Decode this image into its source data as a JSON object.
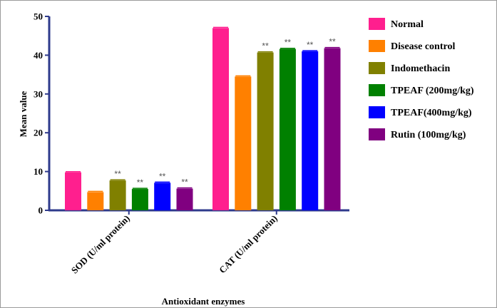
{
  "chart_data": {
    "type": "bar",
    "title": "",
    "xlabel": "Antioxidant enzymes",
    "ylabel": "Mean value",
    "ylim": [
      0,
      50
    ],
    "yticks": [
      "0",
      "10",
      "20",
      "30",
      "40",
      "50"
    ],
    "categories": [
      "SOD (U/ml protein)",
      "CAT (U/ml protein)"
    ],
    "legend_position": "right",
    "series": [
      {
        "name": "Normal",
        "color": "#ff1f8e",
        "values": [
          9.8,
          47.0
        ],
        "annotations": [
          "",
          ""
        ]
      },
      {
        "name": "Disease control",
        "color": "#ff8000",
        "values": [
          4.7,
          34.5
        ],
        "annotations": [
          "",
          ""
        ]
      },
      {
        "name": "Indomethacin",
        "color": "#808000",
        "values": [
          7.7,
          40.7
        ],
        "annotations": [
          "**",
          "**"
        ]
      },
      {
        "name": "TPEAF (200mg/kg)",
        "color": "#008000",
        "values": [
          5.5,
          41.6
        ],
        "annotations": [
          "**",
          "**"
        ]
      },
      {
        "name": "TPEAF(400mg/kg)",
        "color": "#0000ff",
        "values": [
          7.1,
          41.0
        ],
        "annotations": [
          "**",
          "**"
        ]
      },
      {
        "name": "Rutin (100mg/kg)",
        "color": "#800080",
        "values": [
          5.6,
          41.8
        ],
        "annotations": [
          "**",
          "**"
        ]
      }
    ]
  }
}
